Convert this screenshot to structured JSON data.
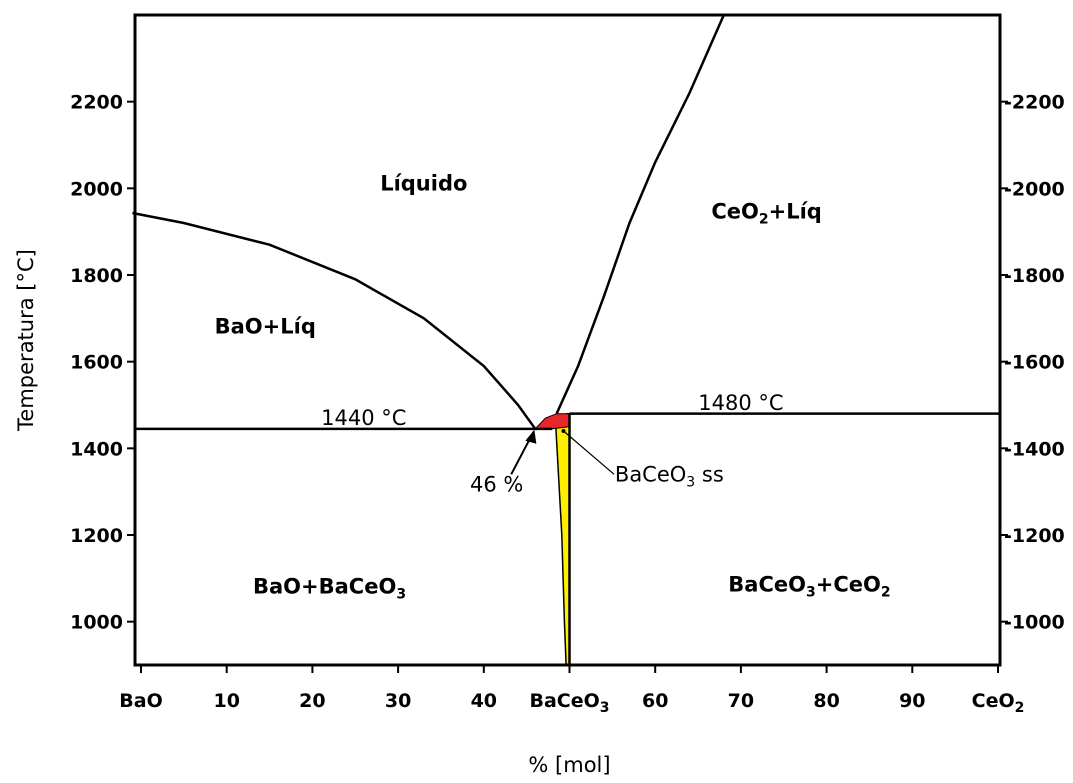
{
  "chart_data": {
    "type": "phase-diagram",
    "xlabel": "% [mol]",
    "ylabel": "Temperatura [°C]",
    "xlim": [
      0,
      100
    ],
    "ylim": [
      900,
      2400
    ],
    "x_ticks": [
      {
        "value": 0,
        "label": "BaO"
      },
      {
        "value": 10,
        "label": "10"
      },
      {
        "value": 20,
        "label": "20"
      },
      {
        "value": 30,
        "label": "30"
      },
      {
        "value": 40,
        "label": "40"
      },
      {
        "value": 50,
        "label": "BaCeO",
        "sub": "3"
      },
      {
        "value": 60,
        "label": "60"
      },
      {
        "value": 70,
        "label": "70"
      },
      {
        "value": 80,
        "label": "80"
      },
      {
        "value": 90,
        "label": "90"
      },
      {
        "value": 100,
        "label": "CeO",
        "sub": "2"
      }
    ],
    "y_ticks_left": [
      "1000",
      "1200",
      "1400",
      "1600",
      "1800",
      "2000",
      "2200"
    ],
    "y_ticks_right": [
      "-1000",
      "-1200",
      "-1400",
      "-1600",
      "-1800",
      "-2000",
      "-2200"
    ],
    "y_tick_values": [
      1000,
      1200,
      1400,
      1600,
      1800,
      2000,
      2200
    ],
    "regions": [
      {
        "parts": [
          [
            "Líquido",
            ""
          ]
        ],
        "x": 33,
        "y": 1995
      },
      {
        "parts": [
          [
            "CeO",
            "2"
          ],
          [
            "+Líq",
            ""
          ]
        ],
        "x": 73,
        "y": 1930
      },
      {
        "parts": [
          [
            "BaO+Líq",
            ""
          ]
        ],
        "x": 14.5,
        "y": 1665
      },
      {
        "parts": [
          [
            "BaO+BaCeO",
            "3"
          ]
        ],
        "x": 22,
        "y": 1065
      },
      {
        "parts": [
          [
            "BaCeO",
            "3"
          ],
          [
            "+CeO",
            "2"
          ]
        ],
        "x": 78,
        "y": 1070
      }
    ],
    "annotations": {
      "eutectic_temp_left": "1440 °C",
      "eutectic_temp_right": "1480 °C",
      "eutectic_composition": "46 %",
      "solid_solution_parts": [
        [
          "BaCeO",
          "3"
        ],
        [
          " ss",
          ""
        ]
      ]
    },
    "lines": {
      "left_liquidus": [
        [
          -1,
          1943
        ],
        [
          5,
          1920
        ],
        [
          15,
          1870
        ],
        [
          25,
          1790
        ],
        [
          33,
          1700
        ],
        [
          40,
          1590
        ],
        [
          44,
          1500
        ],
        [
          46,
          1445
        ]
      ],
      "right_liquidus": [
        [
          48.5,
          1480
        ],
        [
          51,
          1590
        ],
        [
          54,
          1750
        ],
        [
          57,
          1920
        ],
        [
          60,
          2060
        ],
        [
          64,
          2220
        ],
        [
          68,
          2400
        ]
      ],
      "isotherm_left": {
        "y": 1445,
        "x": [
          -1,
          48
        ]
      },
      "isotherm_right": {
        "y": 1480,
        "x": [
          50,
          100
        ]
      },
      "compound_line": {
        "x": 50,
        "y": [
          900,
          1480
        ]
      }
    },
    "fills": {
      "liquid_pocket_color": "#e8252a",
      "solid_solution_color": "#ffee00",
      "liquid_pocket": [
        [
          46,
          1445
        ],
        [
          47.2,
          1470
        ],
        [
          48.5,
          1480
        ],
        [
          50,
          1480
        ],
        [
          50,
          1450
        ],
        [
          48,
          1445
        ]
      ],
      "solid_solution": [
        [
          49.7,
          1480
        ],
        [
          48.4,
          1450
        ],
        [
          48.6,
          1380
        ],
        [
          49.1,
          1200
        ],
        [
          49.4,
          1000
        ],
        [
          49.6,
          900
        ],
        [
          50,
          900
        ],
        [
          50,
          1480
        ]
      ]
    }
  }
}
